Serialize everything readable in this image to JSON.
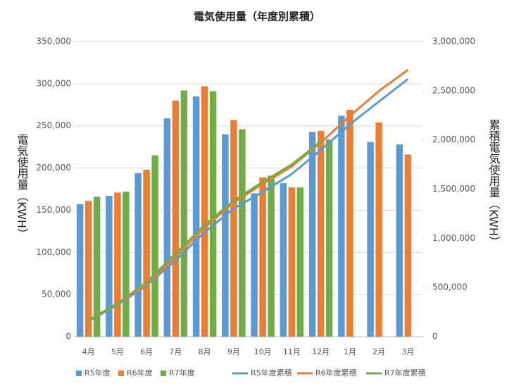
{
  "chart_data": {
    "type": "bar",
    "title": "電気使用量（年度別累積）",
    "y_label": "電気使用量（KWH）",
    "y2_label": "累積電気使用量（KWH）",
    "categories": [
      "4月",
      "5月",
      "6月",
      "7月",
      "8月",
      "9月",
      "10月",
      "11月",
      "12月",
      "1月",
      "2月",
      "3月"
    ],
    "series": [
      {
        "name": "R5年度",
        "type": "bar",
        "color": "#5b9bd5",
        "values": [
          157000,
          167000,
          194000,
          259000,
          285000,
          240000,
          170000,
          182000,
          243000,
          262000,
          231000,
          228000
        ]
      },
      {
        "name": "R6年度",
        "type": "bar",
        "color": "#ed7d31",
        "values": [
          161000,
          171000,
          198000,
          280000,
          297000,
          257000,
          189000,
          177000,
          244000,
          269000,
          254000,
          216000
        ]
      },
      {
        "name": "R7年度",
        "type": "bar",
        "color": "#70ad47",
        "values": [
          166000,
          172000,
          215000,
          292000,
          291000,
          246000,
          191000,
          177000,
          234000,
          null,
          null,
          null
        ]
      },
      {
        "name": "R5年度累積",
        "type": "line",
        "axis": "y2",
        "color": "#5b9bd5",
        "values": [
          157000,
          324000,
          518000,
          777000,
          1062000,
          1302000,
          1472000,
          1654000,
          1897000,
          2159000,
          2390000,
          2618000
        ]
      },
      {
        "name": "R6年度累積",
        "type": "line",
        "axis": "y2",
        "color": "#ed7d31",
        "values": [
          161000,
          332000,
          530000,
          810000,
          1107000,
          1364000,
          1553000,
          1730000,
          1974000,
          2243000,
          2497000,
          2713000
        ]
      },
      {
        "name": "R7年度累積",
        "type": "line",
        "axis": "y2",
        "color": "#70ad47",
        "values": [
          166000,
          338000,
          553000,
          845000,
          1136000,
          1382000,
          1573000,
          1750000,
          1984000,
          null,
          null,
          null
        ]
      }
    ],
    "ylim": [
      0,
      350000
    ],
    "yticks": [
      0,
      {
        "value": 50000,
        "label": "50,000"
      },
      {
        "value": 100000,
        "label": "100,000"
      },
      {
        "value": 150000,
        "label": "150,000"
      },
      {
        "value": 200000,
        "label": "200,000"
      },
      {
        "value": 250000,
        "label": "250,000"
      },
      {
        "value": 300000,
        "label": "300,000"
      },
      {
        "value": 350000,
        "label": "350,000"
      }
    ],
    "y2lim": [
      0,
      3000000
    ],
    "y2ticks": [
      0,
      {
        "value": 500000,
        "label": "500,000"
      },
      {
        "value": 1000000,
        "label": "1,000,000"
      },
      {
        "value": 1500000,
        "label": "1,500,000"
      },
      {
        "value": 2000000,
        "label": "2,000,000"
      },
      {
        "value": 2500000,
        "label": "2,500,000"
      },
      {
        "value": 3000000,
        "label": "3,000,000"
      }
    ],
    "grid": true,
    "legend": "bottom"
  }
}
